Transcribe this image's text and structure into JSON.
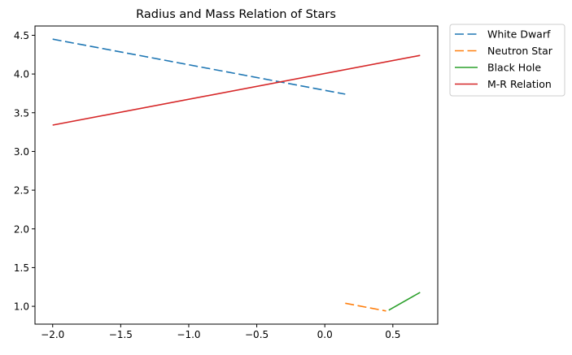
{
  "chart_data": {
    "type": "line",
    "title": "Radius and Mass Relation of Stars",
    "xlabel": "",
    "ylabel": "",
    "xlim": [
      -2.13,
      0.83
    ],
    "ylim": [
      0.77,
      4.62
    ],
    "xticks": [
      -2.0,
      -1.5,
      -1.0,
      -0.5,
      0.0,
      0.5
    ],
    "xtick_labels": [
      "−2.0",
      "−1.5",
      "−1.0",
      "−0.5",
      "0.0",
      "0.5"
    ],
    "yticks": [
      1.0,
      1.5,
      2.0,
      2.5,
      3.0,
      3.5,
      4.0,
      4.5
    ],
    "ytick_labels": [
      "1.0",
      "1.5",
      "2.0",
      "2.5",
      "3.0",
      "3.5",
      "4.0",
      "4.5"
    ],
    "grid": false,
    "legend": "outside-upper-right",
    "series": [
      {
        "name": "White Dwarf",
        "color": "#1f77b4",
        "style": "dashed",
        "x": [
          -2.0,
          0.15
        ],
        "y": [
          4.45,
          3.74
        ]
      },
      {
        "name": "Neutron Star",
        "color": "#ff7f0e",
        "style": "dashed",
        "x": [
          0.15,
          0.45
        ],
        "y": [
          1.04,
          0.94
        ]
      },
      {
        "name": "Black Hole",
        "color": "#2ca02c",
        "style": "solid",
        "x": [
          0.47,
          0.7
        ],
        "y": [
          0.95,
          1.18
        ]
      },
      {
        "name": "M-R Relation",
        "color": "#d62728",
        "style": "solid",
        "x": [
          -2.0,
          0.7
        ],
        "y": [
          3.34,
          4.24
        ]
      }
    ]
  }
}
